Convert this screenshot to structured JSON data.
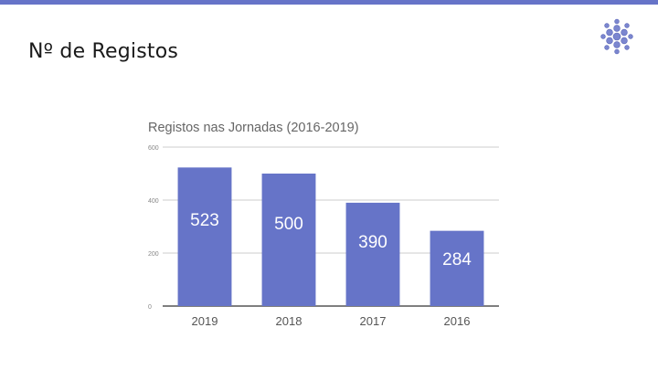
{
  "slide": {
    "title": "Nº de Registos",
    "accent_color": "#6674c8",
    "logo_icon": "hexagon-cluster-logo"
  },
  "chart_data": {
    "type": "bar",
    "title": "Registos nas Jornadas (2016-2019)",
    "categories": [
      "2019",
      "2018",
      "2017",
      "2016"
    ],
    "values": [
      523,
      500,
      390,
      284
    ],
    "ylim": [
      0,
      600
    ],
    "yticks": [
      0,
      200,
      400,
      600
    ],
    "grid": true,
    "bar_color": "#6674c8",
    "data_labels": [
      "523",
      "500",
      "390",
      "284"
    ]
  }
}
